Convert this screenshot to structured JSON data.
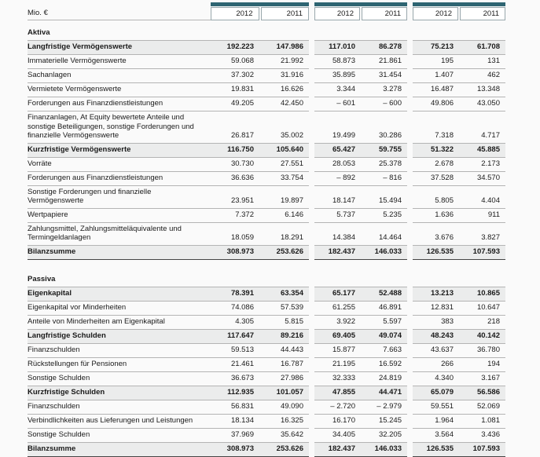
{
  "meta": {
    "unit_label": "Mio. €"
  },
  "colors": {
    "accent_teal": "#2e6572",
    "row_line": "#b4b4b4",
    "total_line": "#454545"
  },
  "header": {
    "year_cols": [
      "2012",
      "2011",
      "2012",
      "2011",
      "2012",
      "2011"
    ]
  },
  "table": {
    "rows": [
      {
        "type": "section",
        "label": "Aktiva",
        "values": [
          "",
          "",
          "",
          "",
          "",
          ""
        ]
      },
      {
        "type": "bold",
        "label": "Langfristige Vermögenswerte",
        "values": [
          "192.223",
          "147.986",
          "117.010",
          "86.278",
          "75.213",
          "61.708"
        ]
      },
      {
        "type": "normal",
        "label": "Immaterielle Vermögenswerte",
        "values": [
          "59.068",
          "21.992",
          "58.873",
          "21.861",
          "195",
          "131"
        ]
      },
      {
        "type": "normal",
        "label": "Sachanlagen",
        "values": [
          "37.302",
          "31.916",
          "35.895",
          "31.454",
          "1.407",
          "462"
        ]
      },
      {
        "type": "normal",
        "label": "Vermietete Vermögenswerte",
        "values": [
          "19.831",
          "16.626",
          "3.344",
          "3.278",
          "16.487",
          "13.348"
        ]
      },
      {
        "type": "normal",
        "label": "Forderungen aus Finanzdienstleistungen",
        "values": [
          "49.205",
          "42.450",
          "– 601",
          "– 600",
          "49.806",
          "43.050"
        ]
      },
      {
        "type": "normal",
        "label": "Finanzanlagen, At Equity bewertete Anteile und sonstige Beteiligungen, sonstige Forderungen und finanzielle Vermögenswerte",
        "values": [
          "26.817",
          "35.002",
          "19.499",
          "30.286",
          "7.318",
          "4.717"
        ]
      },
      {
        "type": "bold",
        "label": "Kurzfristige Vermögenswerte",
        "values": [
          "116.750",
          "105.640",
          "65.427",
          "59.755",
          "51.322",
          "45.885"
        ]
      },
      {
        "type": "normal",
        "label": "Vorräte",
        "values": [
          "30.730",
          "27.551",
          "28.053",
          "25.378",
          "2.678",
          "2.173"
        ]
      },
      {
        "type": "normal",
        "label": "Forderungen aus Finanzdienstleistungen",
        "values": [
          "36.636",
          "33.754",
          "– 892",
          "– 816",
          "37.528",
          "34.570"
        ]
      },
      {
        "type": "normal",
        "label": "Sonstige Forderungen und finanzielle Vermögenswerte",
        "values": [
          "23.951",
          "19.897",
          "18.147",
          "15.494",
          "5.805",
          "4.404"
        ]
      },
      {
        "type": "normal",
        "label": "Wertpapiere",
        "values": [
          "7.372",
          "6.146",
          "5.737",
          "5.235",
          "1.636",
          "911"
        ]
      },
      {
        "type": "normal",
        "label": "Zahlungsmittel, Zahlungsmitteläquivalente und Termingeldanlagen",
        "values": [
          "18.059",
          "18.291",
          "14.384",
          "14.464",
          "3.676",
          "3.827"
        ]
      },
      {
        "type": "total",
        "label": "Bilanzsumme",
        "values": [
          "308.973",
          "253.626",
          "182.437",
          "146.033",
          "126.535",
          "107.593"
        ]
      },
      {
        "type": "spacer",
        "label": "",
        "values": [
          "",
          "",
          "",
          "",
          "",
          ""
        ]
      },
      {
        "type": "section",
        "label": "Passiva",
        "values": [
          "",
          "",
          "",
          "",
          "",
          ""
        ]
      },
      {
        "type": "bold",
        "label": "Eigenkapital",
        "values": [
          "78.391",
          "63.354",
          "65.177",
          "52.488",
          "13.213",
          "10.865"
        ]
      },
      {
        "type": "normal",
        "label": "Eigenkapital vor Minderheiten",
        "values": [
          "74.086",
          "57.539",
          "61.255",
          "46.891",
          "12.831",
          "10.647"
        ]
      },
      {
        "type": "normal",
        "label": "Anteile von Minderheiten am Eigenkapital",
        "values": [
          "4.305",
          "5.815",
          "3.922",
          "5.597",
          "383",
          "218"
        ]
      },
      {
        "type": "bold",
        "label": "Langfristige Schulden",
        "values": [
          "117.647",
          "89.216",
          "69.405",
          "49.074",
          "48.243",
          "40.142"
        ]
      },
      {
        "type": "normal",
        "label": "Finanzschulden",
        "values": [
          "59.513",
          "44.443",
          "15.877",
          "7.663",
          "43.637",
          "36.780"
        ]
      },
      {
        "type": "normal",
        "label": "Rückstellungen für Pensionen",
        "values": [
          "21.461",
          "16.787",
          "21.195",
          "16.592",
          "266",
          "194"
        ]
      },
      {
        "type": "normal",
        "label": "Sonstige Schulden",
        "values": [
          "36.673",
          "27.986",
          "32.333",
          "24.819",
          "4.340",
          "3.167"
        ]
      },
      {
        "type": "bold",
        "label": "Kurzfristige Schulden",
        "values": [
          "112.935",
          "101.057",
          "47.855",
          "44.471",
          "65.079",
          "56.586"
        ]
      },
      {
        "type": "normal",
        "label": "Finanzschulden",
        "values": [
          "56.831",
          "49.090",
          "– 2.720",
          "– 2.979",
          "59.551",
          "52.069"
        ]
      },
      {
        "type": "normal",
        "label": "Verbindlichkeiten aus Lieferungen und Leistungen",
        "values": [
          "18.134",
          "16.325",
          "16.170",
          "15.245",
          "1.964",
          "1.081"
        ]
      },
      {
        "type": "normal",
        "label": "Sonstige Schulden",
        "values": [
          "37.969",
          "35.642",
          "34.405",
          "32.205",
          "3.564",
          "3.436"
        ]
      },
      {
        "type": "total",
        "label": "Bilanzsumme",
        "values": [
          "308.973",
          "253.626",
          "182.437",
          "146.033",
          "126.535",
          "107.593"
        ]
      }
    ]
  }
}
